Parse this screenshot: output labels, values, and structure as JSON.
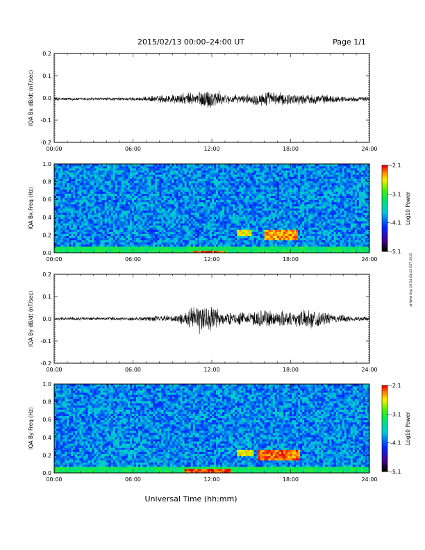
{
  "header": {
    "date_range": "2015/02/13  00:00–24:00 UT",
    "page": "Page 1/1"
  },
  "footer": {
    "xlabel": "Universal Time (hh:mm)",
    "side_stamp": "at Wed Sep 16 14:43:43 CST 2015"
  },
  "chart_data": [
    {
      "type": "line",
      "ylabel": "IQA Bx dB/dt (nT/sec)",
      "x_ticks": [
        "00:00",
        "06:00",
        "12:00",
        "18:00",
        "24:00"
      ],
      "xlim": [
        0,
        24
      ],
      "y_ticks": [
        "-0.2",
        "-0.1",
        "0.0",
        "0.1",
        "0.2"
      ],
      "ylim": [
        -0.2,
        0.2
      ],
      "x": [
        0,
        2,
        4,
        6,
        7,
        8,
        9,
        10,
        11,
        11.5,
        12,
        12.5,
        13,
        14,
        15,
        15.5,
        16,
        17,
        18,
        19,
        20,
        21,
        22,
        23,
        24
      ],
      "envelope": [
        0.008,
        0.008,
        0.008,
        0.009,
        0.012,
        0.02,
        0.025,
        0.03,
        0.04,
        0.05,
        0.055,
        0.04,
        0.025,
        0.02,
        0.025,
        0.035,
        0.04,
        0.035,
        0.03,
        0.025,
        0.025,
        0.02,
        0.015,
        0.012,
        0.01
      ],
      "baseline": -0.005
    },
    {
      "type": "heatmap",
      "ylabel": "IQA Bx Freq (Hz)",
      "x_ticks": [
        "00:00",
        "06:00",
        "12:00",
        "18:00",
        "24:00"
      ],
      "xlim": [
        0,
        24
      ],
      "y_ticks": [
        "0.0",
        "0.2",
        "0.4",
        "0.6",
        "0.8",
        "1.0"
      ],
      "ylim": [
        0,
        1
      ],
      "colorbar": {
        "label": "Log10 Power",
        "ticks": [
          "-2.1",
          "-3.1",
          "-4.1",
          "-5.1"
        ],
        "range": [
          -5.1,
          -2.1
        ]
      },
      "features": [
        {
          "t": [
            10.5,
            13
          ],
          "f": [
            0,
            0.03
          ],
          "level": -2.2
        },
        {
          "t": [
            14,
            15
          ],
          "f": [
            0.18,
            0.25
          ],
          "level": -2.6
        },
        {
          "t": [
            16,
            18.5
          ],
          "f": [
            0.15,
            0.25
          ],
          "level": -2.4
        },
        {
          "t": [
            16.1,
            16.2
          ],
          "f": [
            0,
            0.75
          ],
          "level": -3.0
        }
      ]
    },
    {
      "type": "line",
      "ylabel": "IQA By dB/dt (nT/sec)",
      "x_ticks": [
        "00:00",
        "06:00",
        "12:00",
        "18:00",
        "24:00"
      ],
      "xlim": [
        0,
        24
      ],
      "y_ticks": [
        "-0.2",
        "-0.1",
        "0.0",
        "0.1",
        "0.2"
      ],
      "ylim": [
        -0.2,
        0.2
      ],
      "x": [
        0,
        2,
        4,
        6,
        7,
        8,
        9,
        10,
        10.5,
        11,
        11.5,
        12,
        12.5,
        13,
        14,
        15,
        15.5,
        16,
        17,
        18,
        19,
        20,
        21,
        22,
        23,
        24
      ],
      "envelope": [
        0.008,
        0.008,
        0.008,
        0.01,
        0.012,
        0.015,
        0.02,
        0.03,
        0.06,
        0.075,
        0.07,
        0.065,
        0.05,
        0.03,
        0.03,
        0.035,
        0.045,
        0.05,
        0.04,
        0.04,
        0.045,
        0.045,
        0.025,
        0.02,
        0.012,
        0.01
      ],
      "baseline": 0.0
    },
    {
      "type": "heatmap",
      "ylabel": "IQA By Freq (Hz)",
      "x_ticks": [
        "00:00",
        "06:00",
        "12:00",
        "18:00",
        "24:00"
      ],
      "xlim": [
        0,
        24
      ],
      "y_ticks": [
        "0.0",
        "0.2",
        "0.4",
        "0.6",
        "0.8",
        "1.0"
      ],
      "ylim": [
        0,
        1
      ],
      "colorbar": {
        "label": "Log10 Power",
        "ticks": [
          "-2.1",
          "-3.1",
          "-4.1",
          "-5.1"
        ],
        "range": [
          -5.1,
          -2.1
        ]
      },
      "features": [
        {
          "t": [
            10,
            13.5
          ],
          "f": [
            0,
            0.04
          ],
          "level": -2.2
        },
        {
          "t": [
            14,
            15.2
          ],
          "f": [
            0.18,
            0.27
          ],
          "level": -2.6
        },
        {
          "t": [
            15.6,
            18.7
          ],
          "f": [
            0.15,
            0.25
          ],
          "level": -2.3
        },
        {
          "t": [
            16.1,
            16.2
          ],
          "f": [
            0,
            0.8
          ],
          "level": -3.0
        }
      ]
    }
  ]
}
